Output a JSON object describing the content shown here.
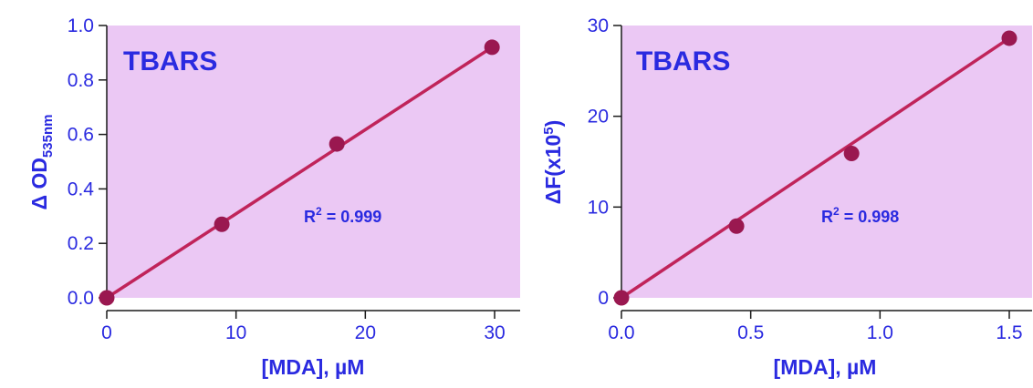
{
  "colors": {
    "plot_bg": "#ebc8f4",
    "line": "#c0245a",
    "marker": "#9a1850",
    "text": "#2a2ae0",
    "axis": "#1a1a1a"
  },
  "chart_data": [
    {
      "type": "scatter",
      "title": "TBARS",
      "xlabel": "[MDA], µM",
      "ylabel": "Δ OD",
      "ylabel_sub": "535nm",
      "annotation": "R",
      "annotation_sup": "2",
      "annotation_rest": " = 0.999",
      "xlim": [
        0,
        32
      ],
      "ylim": [
        0,
        1.0
      ],
      "xticks": [
        0,
        10,
        20,
        30
      ],
      "xtick_labels": [
        "0",
        "10",
        "20",
        "30"
      ],
      "yticks": [
        0,
        0.2,
        0.4,
        0.6,
        0.8,
        1.0
      ],
      "ytick_labels": [
        "0.0",
        "0.2",
        "0.4",
        "0.6",
        "0.8",
        "1.0"
      ],
      "grid": false,
      "series": [
        {
          "x": [
            0,
            8.9,
            17.8,
            29.8
          ],
          "y": [
            0.0,
            0.27,
            0.565,
            0.92
          ]
        }
      ],
      "fit_line": {
        "x": [
          0,
          29.8
        ],
        "y": [
          0.0,
          0.92
        ]
      }
    },
    {
      "type": "scatter",
      "title": "TBARS",
      "xlabel": "[MDA], µM",
      "ylabel": "ΔF(x10",
      "ylabel_sup": "5",
      "ylabel_end": ")",
      "annotation": "R",
      "annotation_sup": "2",
      "annotation_rest": " = 0.998",
      "xlim": [
        0,
        1.6
      ],
      "ylim": [
        0,
        30
      ],
      "xticks": [
        0,
        0.5,
        1.0,
        1.5
      ],
      "xtick_labels": [
        "0.0",
        "0.5",
        "1.0",
        "1.5"
      ],
      "yticks": [
        0,
        10,
        20,
        30
      ],
      "ytick_labels": [
        "0",
        "10",
        "20",
        "30"
      ],
      "grid": false,
      "series": [
        {
          "x": [
            0,
            0.445,
            0.89,
            1.5
          ],
          "y": [
            0,
            7.9,
            15.9,
            28.6
          ]
        }
      ],
      "fit_line": {
        "x": [
          0,
          1.5
        ],
        "y": [
          0,
          28.6
        ]
      }
    }
  ]
}
